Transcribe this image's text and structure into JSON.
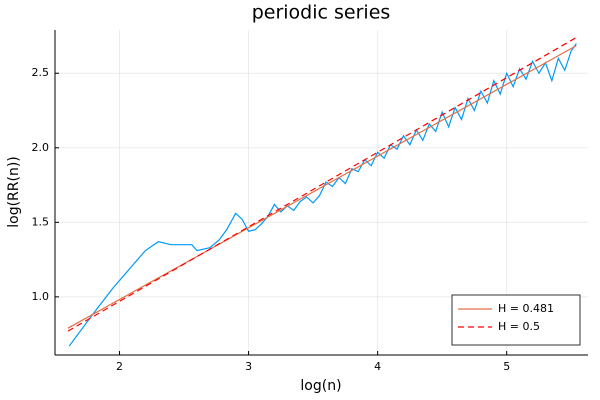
{
  "chart_data": {
    "type": "line",
    "title": "periodic series",
    "x_label": "log(n)",
    "y_label": "log(RR(n))",
    "xlim": [
      1.5,
      5.63
    ],
    "ylim": [
      0.61,
      2.79
    ],
    "xticks": [
      2,
      3,
      4,
      5
    ],
    "yticks": [
      {
        "value": 1,
        "label": "1.0"
      },
      {
        "value": 1.5,
        "label": "1.5"
      },
      {
        "value": 2,
        "label": "2.0"
      },
      {
        "value": 2.5,
        "label": "2.5"
      }
    ],
    "grid": true,
    "legend": "bottom-right",
    "series": [
      {
        "color": "#009af9",
        "dash": false,
        "x": [
          1.61,
          1.79,
          1.95,
          2.08,
          2.2,
          2.3,
          2.4,
          2.48,
          2.56,
          2.6,
          2.7,
          2.77,
          2.83,
          2.9,
          2.95,
          3.0,
          3.05,
          3.1,
          3.15,
          3.2,
          3.25,
          3.3,
          3.35,
          3.4,
          3.45,
          3.5,
          3.55,
          3.6,
          3.65,
          3.7,
          3.75,
          3.8,
          3.85,
          3.9,
          3.95,
          4.0,
          4.05,
          4.1,
          4.15,
          4.2,
          4.25,
          4.3,
          4.35,
          4.4,
          4.45,
          4.5,
          4.55,
          4.6,
          4.65,
          4.7,
          4.75,
          4.8,
          4.85,
          4.9,
          4.95,
          5.0,
          5.05,
          5.1,
          5.15,
          5.2,
          5.25,
          5.3,
          5.35,
          5.4,
          5.45,
          5.5,
          5.54
        ],
        "values": [
          0.67,
          0.88,
          1.06,
          1.19,
          1.31,
          1.37,
          1.35,
          1.35,
          1.35,
          1.31,
          1.33,
          1.38,
          1.45,
          1.56,
          1.52,
          1.44,
          1.45,
          1.49,
          1.54,
          1.62,
          1.57,
          1.61,
          1.58,
          1.64,
          1.67,
          1.63,
          1.68,
          1.77,
          1.74,
          1.8,
          1.76,
          1.86,
          1.84,
          1.92,
          1.88,
          1.97,
          1.93,
          2.02,
          1.99,
          2.08,
          2.02,
          2.12,
          2.05,
          2.16,
          2.11,
          2.24,
          2.14,
          2.27,
          2.19,
          2.33,
          2.25,
          2.38,
          2.3,
          2.45,
          2.36,
          2.5,
          2.41,
          2.53,
          2.46,
          2.58,
          2.5,
          2.57,
          2.45,
          2.6,
          2.52,
          2.65,
          2.7
        ]
      },
      {
        "name": "H = 0.481",
        "color": "#e26f46",
        "dash": false,
        "x": [
          1.6,
          5.54
        ],
        "values": [
          0.79,
          2.685
        ]
      },
      {
        "name": "H = 0.5",
        "color": "#ff0000",
        "dash": true,
        "x": [
          1.6,
          5.54
        ],
        "values": [
          0.77,
          2.74
        ]
      }
    ]
  }
}
